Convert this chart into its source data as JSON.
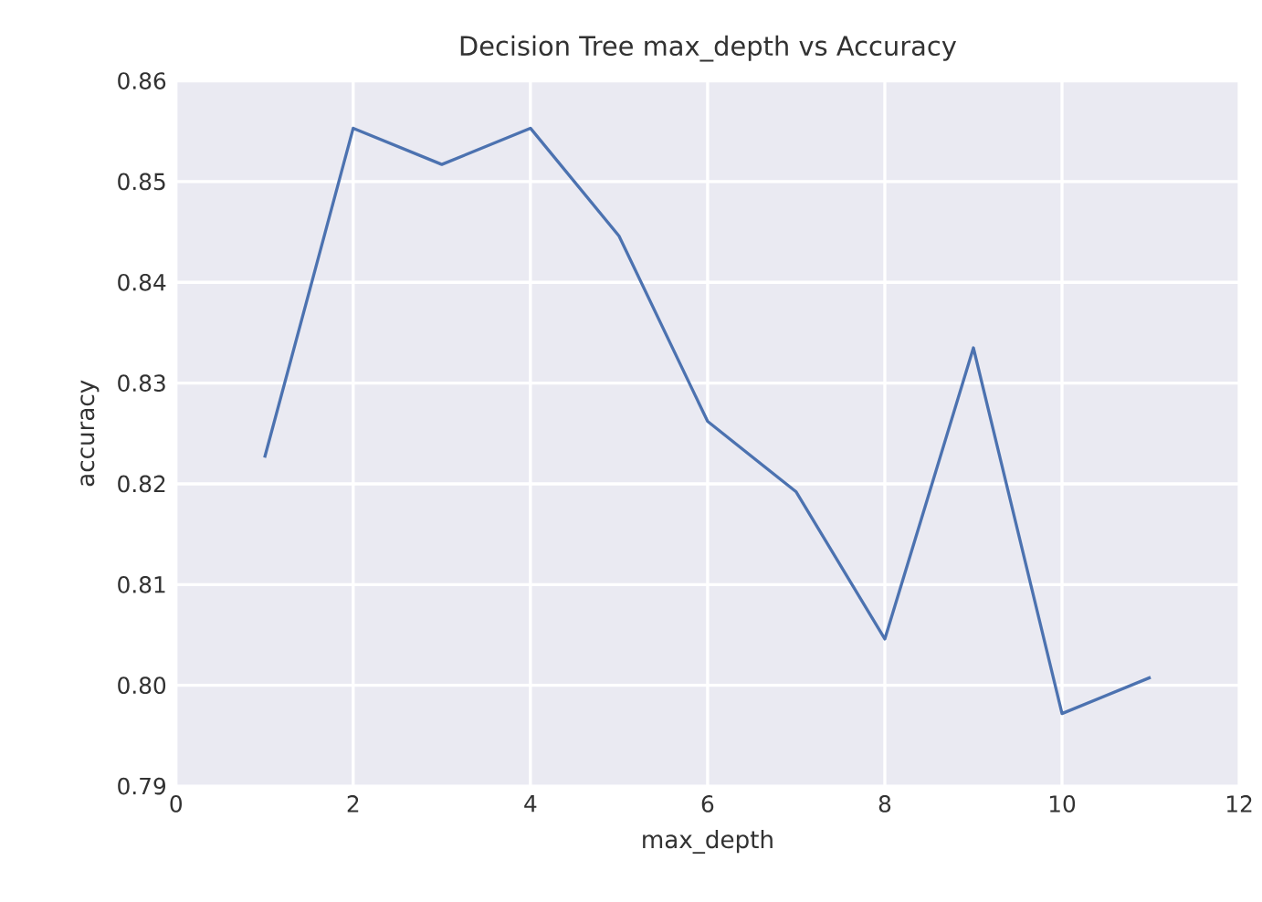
{
  "chart_data": {
    "type": "line",
    "title": "Decision Tree max_depth vs Accuracy",
    "xlabel": "max_depth",
    "ylabel": "accuracy",
    "x": [
      1,
      2,
      3,
      4,
      5,
      6,
      7,
      8,
      9,
      10,
      11
    ],
    "series": [
      {
        "color": "#4c72b0",
        "values": [
          0.8226,
          0.8553,
          0.8517,
          0.8553,
          0.8446,
          0.8262,
          0.8192,
          0.8046,
          0.8335,
          0.7972,
          0.8008
        ]
      }
    ],
    "xlim": [
      0,
      12
    ],
    "xticks": [
      0,
      2,
      4,
      6,
      8,
      10,
      12
    ],
    "ylim": [
      0.79,
      0.86
    ],
    "yticks": [
      0.79,
      {
        "value": 0.8,
        "label": "0.80"
      },
      0.81,
      0.82,
      0.83,
      0.84,
      0.85,
      0.86
    ],
    "grid": true,
    "marker": "none",
    "line_style": "solid"
  }
}
